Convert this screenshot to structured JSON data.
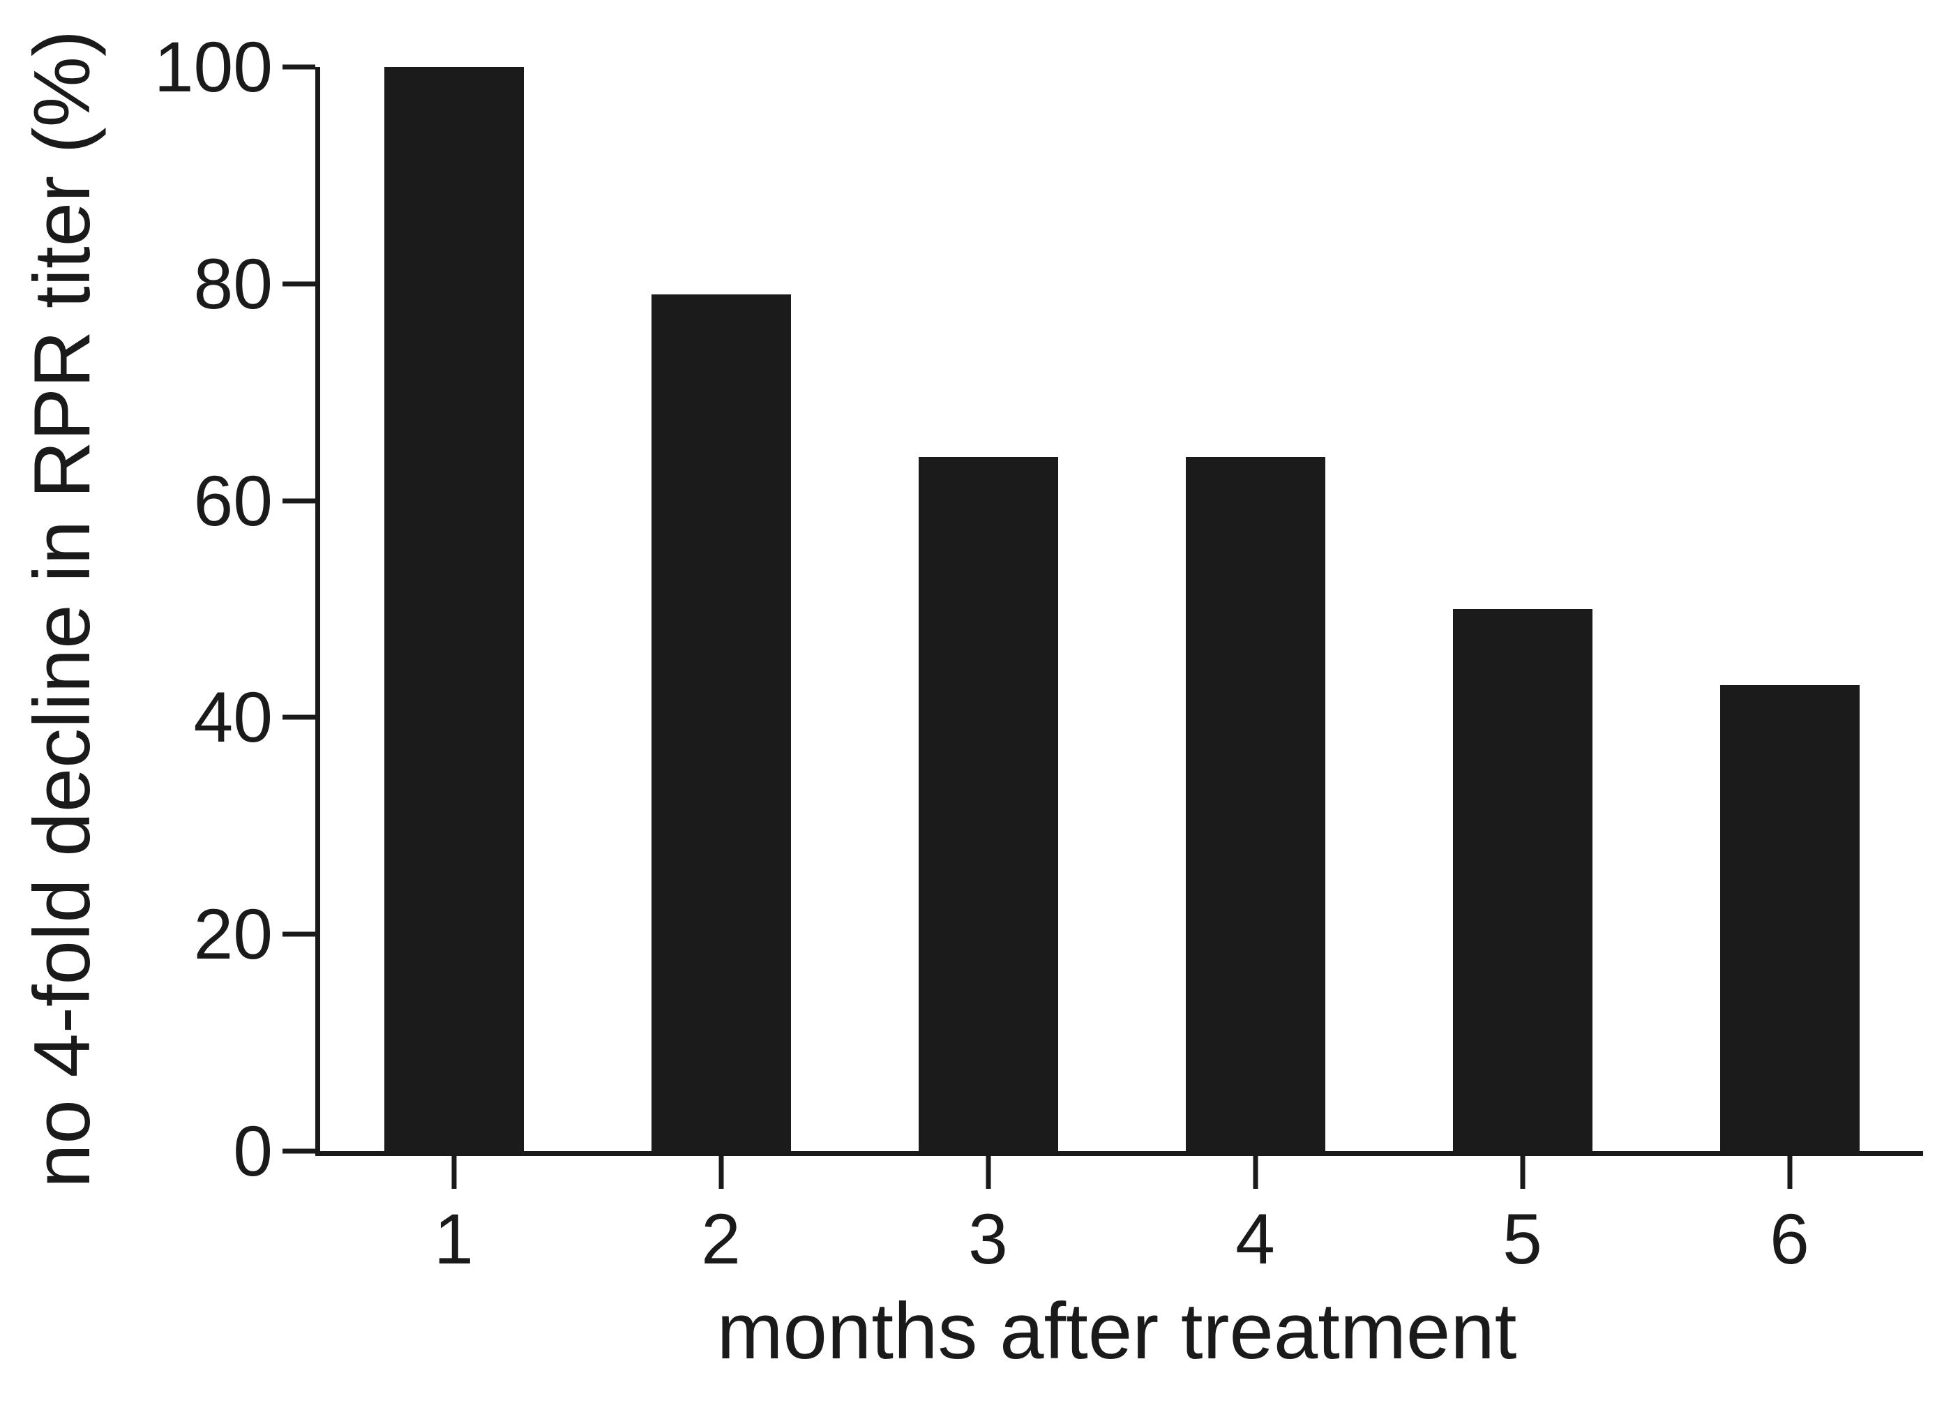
{
  "chart_data": {
    "type": "bar",
    "title": "",
    "categories": [
      "1",
      "2",
      "3",
      "4",
      "5",
      "6"
    ],
    "values": [
      100,
      79,
      64,
      64,
      50,
      43
    ],
    "xlabel": "months after treatment",
    "ylabel": "no 4-fold decline in RPR titer (%)",
    "ylim": [
      0,
      100
    ],
    "yticks": [
      0,
      20,
      40,
      60,
      80,
      100
    ],
    "grid": false,
    "legend": "none",
    "bar_color": "#1b1b1b"
  },
  "colors": {
    "axis": "#1a1a1a",
    "text": "#1a1a1a",
    "background": "#ffffff"
  }
}
